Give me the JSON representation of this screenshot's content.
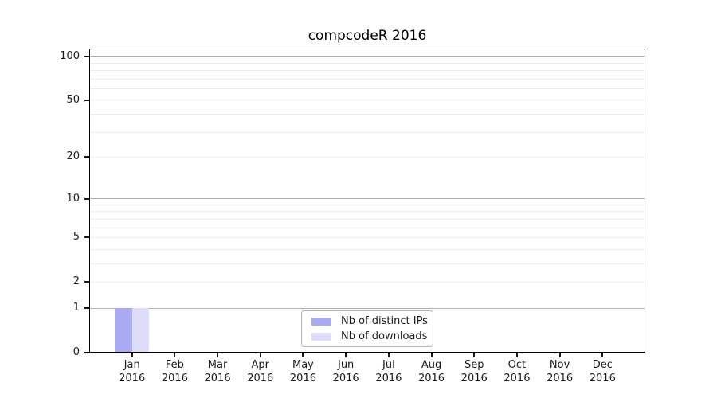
{
  "chart_data": {
    "type": "bar",
    "title": "compcodeR 2016",
    "categories": [
      "Jan",
      "Feb",
      "Mar",
      "Apr",
      "May",
      "Jun",
      "Jul",
      "Aug",
      "Sep",
      "Oct",
      "Nov",
      "Dec"
    ],
    "year": "2016",
    "series": [
      {
        "name": "Nb of distinct IPs",
        "color": "#aaaaf2",
        "values": [
          1,
          0,
          0,
          0,
          0,
          0,
          0,
          0,
          0,
          0,
          0,
          0
        ]
      },
      {
        "name": "Nb of downloads",
        "color": "#dcdcf8",
        "values": [
          1,
          0,
          0,
          0,
          0,
          0,
          0,
          0,
          0,
          0,
          0,
          0
        ]
      }
    ],
    "yscale": "log1p",
    "ylim": [
      0,
      113
    ],
    "yticks": [
      0,
      1,
      2,
      5,
      10,
      20,
      50,
      100
    ],
    "minor_gridlines": [
      2,
      3,
      4,
      5,
      6,
      7,
      8,
      9,
      20,
      30,
      40,
      50,
      60,
      70,
      80,
      90
    ],
    "decade_gridlines": [
      1,
      10,
      100
    ],
    "grid": "horizontal",
    "xlabel": "",
    "ylabel": "",
    "legend_position": "bottom-center",
    "colors": {
      "spine": "#000000",
      "decade_gridline": "#b0b0b0",
      "minor_gridline": "#ececec",
      "tick_label": "#1a1a1a",
      "background": "#ffffff",
      "legend_border": "#b3b3b3"
    }
  }
}
